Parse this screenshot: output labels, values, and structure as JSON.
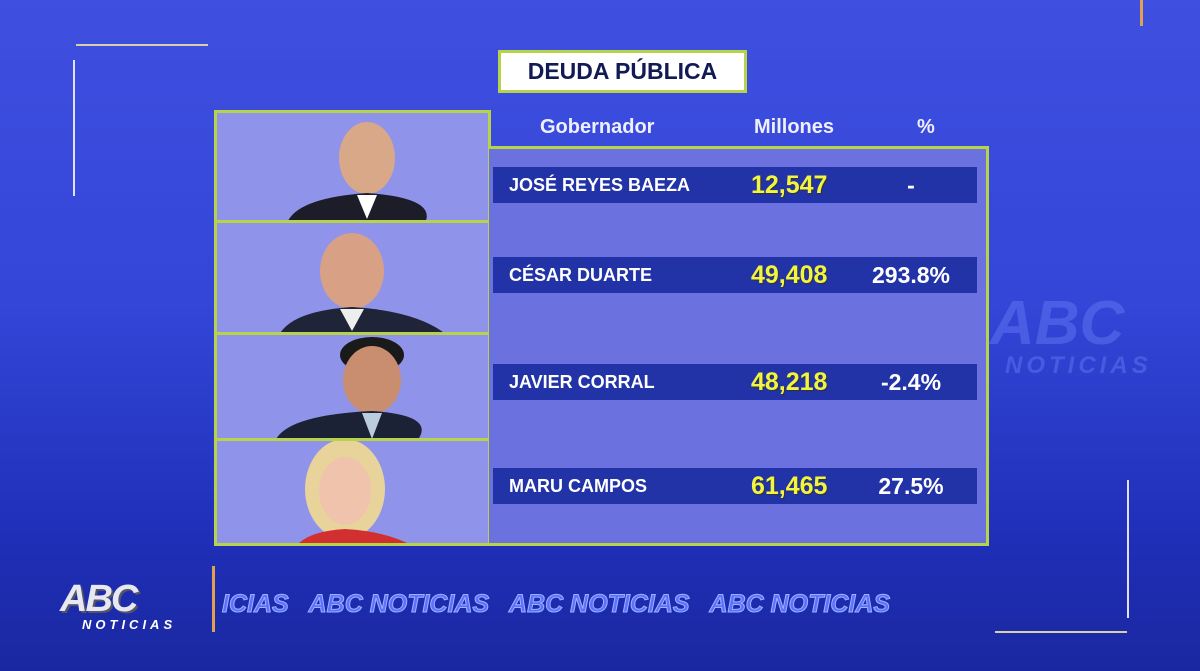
{
  "title": "DEUDA PÚBLICA",
  "headers": {
    "governor": "Gobernador",
    "millions": "Millones",
    "percent": "%"
  },
  "rows": [
    {
      "name": "JOSÉ REYES BAEZA",
      "millions": "12,547",
      "percent": "-"
    },
    {
      "name": "CÉSAR DUARTE",
      "millions": "49,408",
      "percent": "293.8%"
    },
    {
      "name": "JAVIER CORRAL",
      "millions": "48,218",
      "percent": "-2.4%"
    },
    {
      "name": "MARU CAMPOS",
      "millions": "61,465",
      "percent": "27.5%"
    }
  ],
  "logo": {
    "brand": "ABC",
    "sub": "NOTICIAS"
  },
  "ticker": "ICIAS   ABC NOTICIAS   ABC NOTICIAS   ABC NOTICIAS",
  "watermark": {
    "brand": "ABC",
    "sub": "NOTICIAS"
  },
  "colors": {
    "accent": "#b7d34a",
    "value": "#f2f540",
    "row": "#2233a8",
    "background": "#3346d8"
  }
}
